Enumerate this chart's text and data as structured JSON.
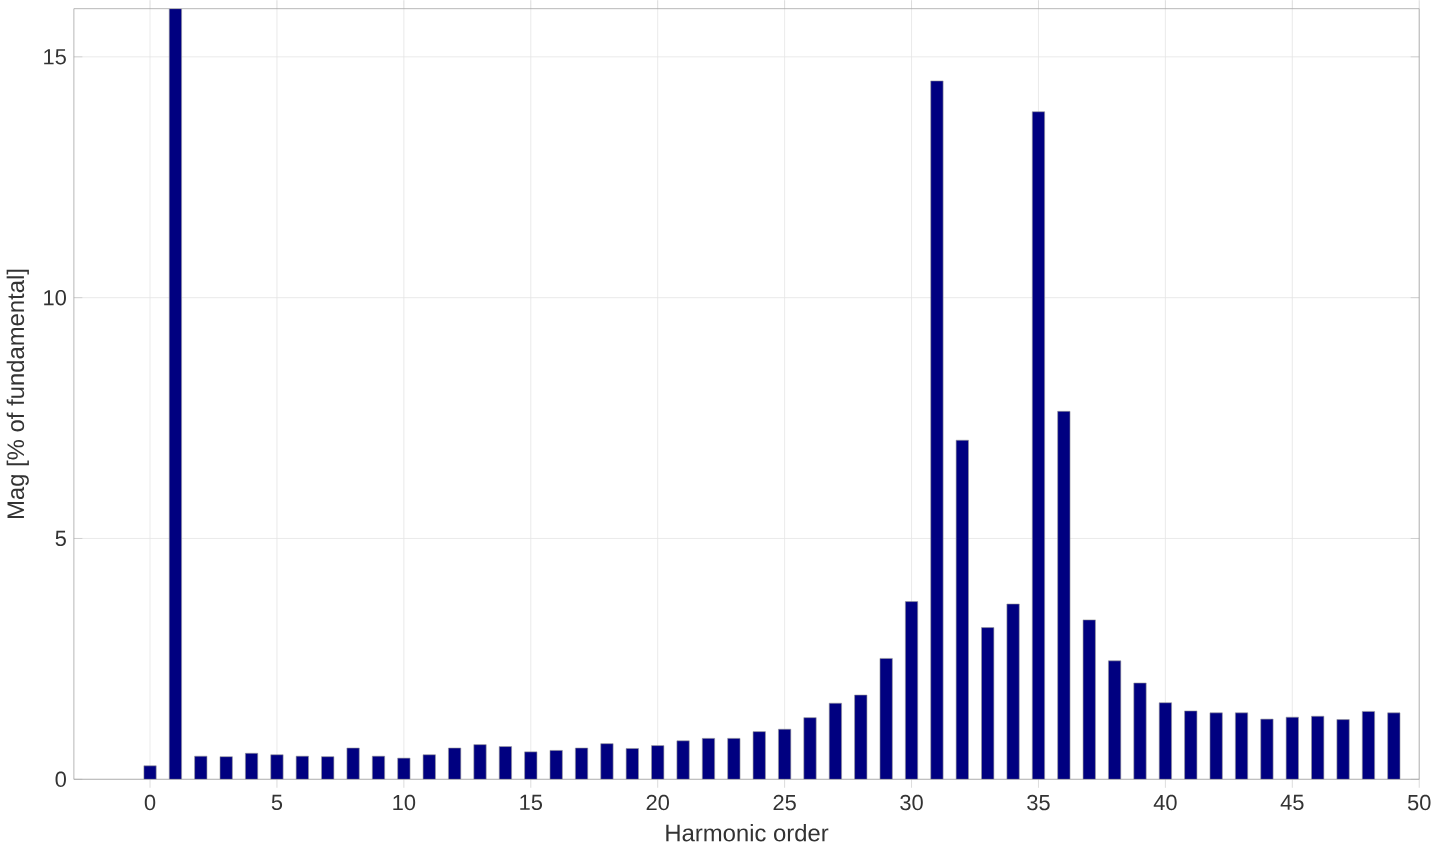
{
  "chart_data": {
    "type": "bar",
    "xlabel": "Harmonic order",
    "ylabel": "Mag [% of fundamental]",
    "x": [
      0,
      1,
      2,
      3,
      4,
      5,
      6,
      7,
      8,
      9,
      10,
      11,
      12,
      13,
      14,
      15,
      16,
      17,
      18,
      19,
      20,
      21,
      22,
      23,
      24,
      25,
      26,
      27,
      28,
      29,
      30,
      31,
      32,
      33,
      34,
      35,
      36,
      37,
      38,
      39,
      40,
      41,
      42,
      43,
      44,
      45,
      46,
      47,
      48,
      49
    ],
    "values": [
      0.28,
      16,
      0.48,
      0.47,
      0.54,
      0.51,
      0.48,
      0.47,
      0.65,
      0.48,
      0.44,
      0.51,
      0.65,
      0.72,
      0.68,
      0.57,
      0.6,
      0.65,
      0.74,
      0.64,
      0.7,
      0.8,
      0.85,
      0.85,
      0.99,
      1.04,
      1.28,
      1.58,
      1.75,
      2.51,
      3.69,
      14.5,
      7.04,
      3.15,
      3.64,
      13.86,
      7.64,
      3.31,
      2.46,
      2.0,
      1.59,
      1.42,
      1.38,
      1.38,
      1.25,
      1.29,
      1.31,
      1.24,
      1.41,
      1.38
    ],
    "color": "#000080",
    "xlim": [
      -3,
      50
    ],
    "ylim": [
      0,
      16
    ],
    "xticks": [
      0,
      5,
      10,
      15,
      20,
      25,
      30,
      35,
      40,
      45,
      50
    ],
    "yticks": [
      0,
      5,
      10,
      15
    ],
    "grid": true
  }
}
